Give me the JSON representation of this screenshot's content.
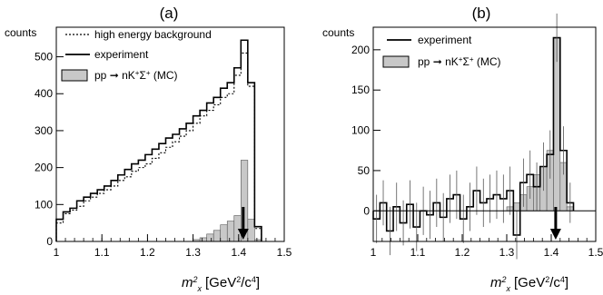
{
  "figure": {
    "xlabel_var": "m",
    "xlabel_sub": "x",
    "xlabel_sup": "2",
    "xlabel_unit": "[GeV",
    "xlabel_unit_sup1": "2",
    "xlabel_unit_mid": "/c",
    "xlabel_unit_sup2": "4",
    "xlabel_unit_end": "]"
  },
  "chart_data": [
    {
      "type": "histogram",
      "title": "(a)",
      "ylabel": "counts",
      "xlim": [
        1.0,
        1.5
      ],
      "ylim": [
        0,
        580
      ],
      "xticks": [
        1,
        1.1,
        1.2,
        1.3,
        1.4,
        1.5
      ],
      "xtick_labels": [
        "1",
        "1.1",
        "1.2",
        "1.3",
        "1.4",
        "1.5"
      ],
      "yticks": [
        0,
        100,
        200,
        300,
        400,
        500
      ],
      "ytick_labels": [
        "0",
        "100",
        "200",
        "300",
        "400",
        "500"
      ],
      "bin_edges": [
        1.0,
        1.015,
        1.03,
        1.045,
        1.06,
        1.075,
        1.09,
        1.105,
        1.12,
        1.135,
        1.15,
        1.165,
        1.18,
        1.195,
        1.21,
        1.225,
        1.24,
        1.255,
        1.27,
        1.285,
        1.3,
        1.315,
        1.33,
        1.345,
        1.36,
        1.375,
        1.39,
        1.405,
        1.42,
        1.435,
        1.45
      ],
      "legend": [
        {
          "label": "high energy background",
          "style": "dotted"
        },
        {
          "label": "experiment",
          "style": "solid"
        },
        {
          "label": "pp",
          "label_rest": "nK",
          "label_sup1": "+",
          "label_sigma": "Σ",
          "label_sup2": "+",
          "label_mc": " (MC)",
          "style": "filled"
        }
      ],
      "arrow_x": 1.41,
      "series": [
        {
          "name": "experiment",
          "style": "solid",
          "values": [
            60,
            80,
            90,
            110,
            120,
            130,
            140,
            150,
            165,
            180,
            195,
            210,
            220,
            235,
            250,
            265,
            280,
            290,
            305,
            320,
            340,
            355,
            375,
            390,
            415,
            430,
            470,
            545,
            430,
            40
          ]
        },
        {
          "name": "high energy background",
          "style": "dotted",
          "values": [
            50,
            75,
            85,
            95,
            110,
            120,
            130,
            140,
            150,
            165,
            175,
            190,
            200,
            210,
            225,
            240,
            255,
            270,
            285,
            300,
            320,
            340,
            355,
            370,
            390,
            400,
            450,
            510,
            420,
            35
          ]
        },
        {
          "name": "pp→nK+Σ+ (MC)",
          "style": "filled",
          "values": [
            0,
            0,
            0,
            0,
            0,
            0,
            0,
            0,
            0,
            0,
            0,
            0,
            0,
            0,
            0,
            0,
            0,
            0,
            0,
            0,
            5,
            10,
            20,
            30,
            45,
            55,
            70,
            220,
            60,
            5
          ]
        }
      ]
    },
    {
      "type": "histogram",
      "title": "(b)",
      "ylabel": "counts",
      "xlim": [
        1.0,
        1.5
      ],
      "ylim": [
        -38,
        228
      ],
      "xticks": [
        1,
        1.1,
        1.2,
        1.3,
        1.4,
        1.5
      ],
      "xtick_labels": [
        "1",
        "1.1",
        "1.2",
        "1.3",
        "1.4",
        "1.5"
      ],
      "yticks": [
        0,
        50,
        100,
        150,
        200
      ],
      "ytick_labels": [
        "0",
        "50",
        "100",
        "150",
        "200"
      ],
      "bin_edges": [
        1.0,
        1.015,
        1.03,
        1.045,
        1.06,
        1.075,
        1.09,
        1.105,
        1.12,
        1.135,
        1.15,
        1.165,
        1.18,
        1.195,
        1.21,
        1.225,
        1.24,
        1.255,
        1.27,
        1.285,
        1.3,
        1.315,
        1.33,
        1.345,
        1.36,
        1.375,
        1.39,
        1.405,
        1.42,
        1.435,
        1.45
      ],
      "legend": [
        {
          "label": "experiment",
          "style": "solid"
        },
        {
          "label": "pp",
          "label_rest": "nK",
          "label_sup1": "+",
          "label_sigma": "Σ",
          "label_sup2": "+",
          "label_mc": " (MC)",
          "style": "filled"
        }
      ],
      "arrow_x": 1.41,
      "series": [
        {
          "name": "experiment",
          "style": "solid",
          "values": [
            -10,
            10,
            -25,
            5,
            -15,
            8,
            -20,
            0,
            -5,
            10,
            -8,
            15,
            20,
            -10,
            5,
            25,
            10,
            15,
            20,
            15,
            25,
            -30,
            35,
            45,
            30,
            55,
            70,
            215,
            75,
            10
          ],
          "errors": [
            30,
            28,
            30,
            30,
            28,
            30,
            30,
            30,
            30,
            30,
            30,
            30,
            30,
            30,
            30,
            30,
            30,
            30,
            30,
            30,
            30,
            30,
            30,
            30,
            30,
            30,
            30,
            30,
            30,
            25
          ]
        },
        {
          "name": "pp→nK+Σ+ (MC)",
          "style": "filled",
          "values": [
            0,
            0,
            0,
            0,
            0,
            0,
            0,
            0,
            0,
            0,
            0,
            0,
            0,
            0,
            0,
            0,
            0,
            0,
            0,
            0,
            5,
            10,
            20,
            30,
            45,
            55,
            75,
            215,
            60,
            5
          ]
        }
      ]
    }
  ]
}
